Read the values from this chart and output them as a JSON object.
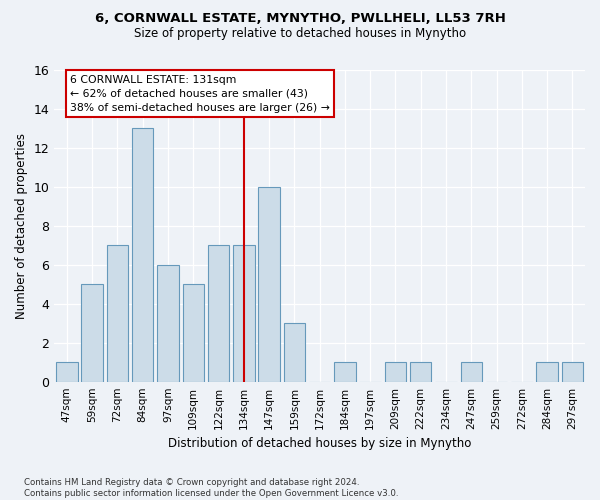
{
  "title": "6, CORNWALL ESTATE, MYNYTHO, PWLLHELI, LL53 7RH",
  "subtitle": "Size of property relative to detached houses in Mynytho",
  "xlabel": "Distribution of detached houses by size in Mynytho",
  "ylabel": "Number of detached properties",
  "bar_color": "#ccdce8",
  "bar_edge_color": "#6699bb",
  "bins": [
    "47sqm",
    "59sqm",
    "72sqm",
    "84sqm",
    "97sqm",
    "109sqm",
    "122sqm",
    "134sqm",
    "147sqm",
    "159sqm",
    "172sqm",
    "184sqm",
    "197sqm",
    "209sqm",
    "222sqm",
    "234sqm",
    "247sqm",
    "259sqm",
    "272sqm",
    "284sqm",
    "297sqm"
  ],
  "heights": [
    1,
    5,
    7,
    13,
    6,
    5,
    7,
    7,
    10,
    3,
    0,
    1,
    0,
    1,
    1,
    0,
    1,
    0,
    0,
    1,
    1
  ],
  "ylim": [
    0,
    16
  ],
  "yticks": [
    0,
    2,
    4,
    6,
    8,
    10,
    12,
    14,
    16
  ],
  "vline_x": 7,
  "annotation_text": "6 CORNWALL ESTATE: 131sqm\n← 62% of detached houses are smaller (43)\n38% of semi-detached houses are larger (26) →",
  "annotation_box_color": "#ffffff",
  "annotation_box_edge_color": "#cc0000",
  "vline_color": "#cc0000",
  "footnote": "Contains HM Land Registry data © Crown copyright and database right 2024.\nContains public sector information licensed under the Open Government Licence v3.0.",
  "background_color": "#eef2f7",
  "plot_bg_color": "#eef2f7"
}
